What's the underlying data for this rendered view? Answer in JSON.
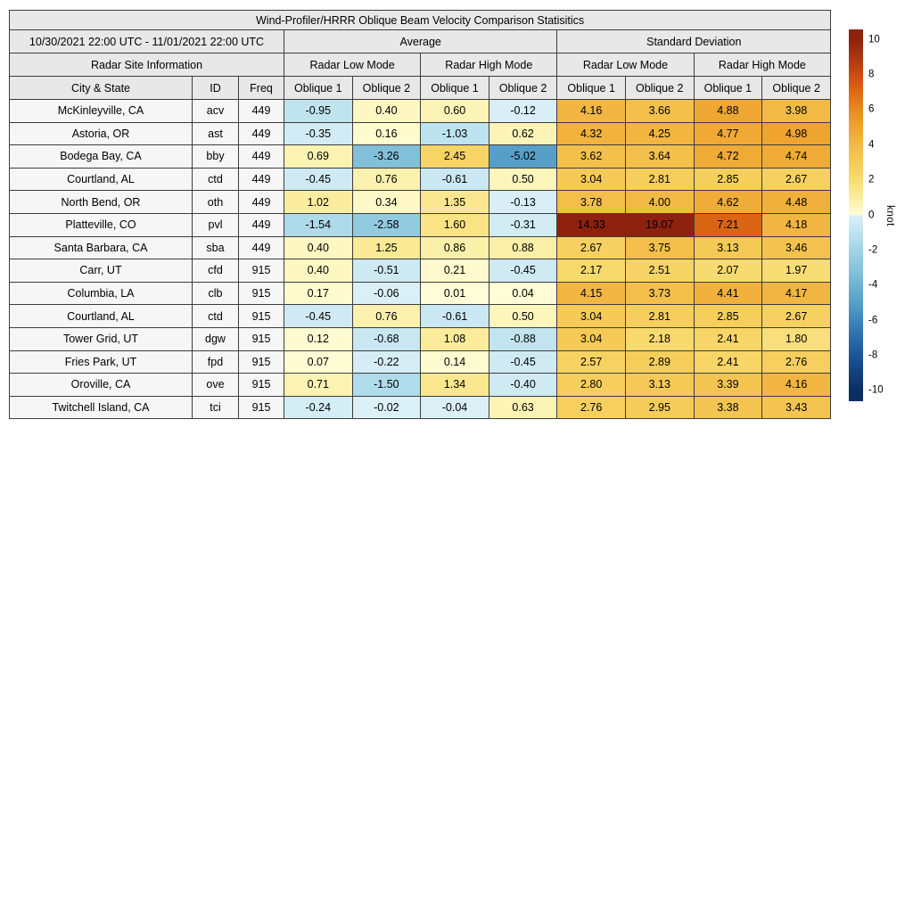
{
  "title": "Wind-Profiler/HRRR Oblique Beam Velocity Comparison Statisitics",
  "header": {
    "date_range": "10/30/2021 22:00 UTC - 11/01/2021 22:00 UTC",
    "average_label": "Average",
    "std_label": "Standard Deviation",
    "site_info_label": "Radar Site Information",
    "low_mode_label": "Radar Low Mode",
    "high_mode_label": "Radar High Mode",
    "col_city": "City & State",
    "col_id": "ID",
    "col_freq": "Freq",
    "col_oblique1": "Oblique 1",
    "col_oblique2": "Oblique 2"
  },
  "chart_data": {
    "type": "table",
    "title": "Wind-Profiler/HRRR Oblique Beam Velocity Comparison Statisitics",
    "time_range": "10/30/2021 22:00 UTC - 11/01/2021 22:00 UTC",
    "column_groups": [
      "Average / Radar Low Mode",
      "Average / Radar High Mode",
      "Standard Deviation / Radar Low Mode",
      "Standard Deviation / Radar High Mode"
    ],
    "value_columns": [
      "Avg Low Oblique 1",
      "Avg Low Oblique 2",
      "Avg High Oblique 1",
      "Avg High Oblique 2",
      "Std Low Oblique 1",
      "Std Low Oblique 2",
      "Std High Oblique 1",
      "Std High Oblique 2"
    ],
    "rows": [
      {
        "city": "McKinleyville, CA",
        "id": "acv",
        "freq": "449",
        "values": [
          "-0.95",
          "0.40",
          "0.60",
          "-0.12",
          "4.16",
          "3.66",
          "4.88",
          "3.98"
        ]
      },
      {
        "city": "Astoria, OR",
        "id": "ast",
        "freq": "449",
        "values": [
          "-0.35",
          "0.16",
          "-1.03",
          "0.62",
          "4.32",
          "4.25",
          "4.77",
          "4.98"
        ]
      },
      {
        "city": "Bodega Bay, CA",
        "id": "bby",
        "freq": "449",
        "values": [
          "0.69",
          "-3.26",
          "2.45",
          "-5.02",
          "3.62",
          "3.64",
          "4.72",
          "4.74"
        ]
      },
      {
        "city": "Courtland, AL",
        "id": "ctd",
        "freq": "449",
        "values": [
          "-0.45",
          "0.76",
          "-0.61",
          "0.50",
          "3.04",
          "2.81",
          "2.85",
          "2.67"
        ]
      },
      {
        "city": "North Bend, OR",
        "id": "oth",
        "freq": "449",
        "values": [
          "1.02",
          "0.34",
          "1.35",
          "-0.13",
          "3.78",
          "4.00",
          "4.62",
          "4.48"
        ]
      },
      {
        "city": "Platteville, CO",
        "id": "pvl",
        "freq": "449",
        "values": [
          "-1.54",
          "-2.58",
          "1.60",
          "-0.31",
          "14.33",
          "19.07",
          "7.21",
          "4.18"
        ]
      },
      {
        "city": "Santa Barbara, CA",
        "id": "sba",
        "freq": "449",
        "values": [
          "0.40",
          "1.25",
          "0.86",
          "0.88",
          "2.67",
          "3.75",
          "3.13",
          "3.46"
        ]
      },
      {
        "city": "Carr, UT",
        "id": "cfd",
        "freq": "915",
        "values": [
          "0.40",
          "-0.51",
          "0.21",
          "-0.45",
          "2.17",
          "2.51",
          "2.07",
          "1.97"
        ]
      },
      {
        "city": "Columbia, LA",
        "id": "clb",
        "freq": "915",
        "values": [
          "0.17",
          "-0.06",
          "0.01",
          "0.04",
          "4.15",
          "3.73",
          "4.41",
          "4.17"
        ]
      },
      {
        "city": "Courtland, AL",
        "id": "ctd",
        "freq": "915",
        "values": [
          "-0.45",
          "0.76",
          "-0.61",
          "0.50",
          "3.04",
          "2.81",
          "2.85",
          "2.67"
        ]
      },
      {
        "city": "Tower Grid, UT",
        "id": "dgw",
        "freq": "915",
        "values": [
          "0.12",
          "-0.68",
          "1.08",
          "-0.88",
          "3.04",
          "2.18",
          "2.41",
          "1.80"
        ]
      },
      {
        "city": "Fries Park, UT",
        "id": "fpd",
        "freq": "915",
        "values": [
          "0.07",
          "-0.22",
          "0.14",
          "-0.45",
          "2.57",
          "2.89",
          "2.41",
          "2.76"
        ]
      },
      {
        "city": "Oroville, CA",
        "id": "ove",
        "freq": "915",
        "values": [
          "0.71",
          "-1.50",
          "1.34",
          "-0.40",
          "2.80",
          "3.13",
          "3.39",
          "4.16"
        ]
      },
      {
        "city": "Twitchell Island, CA",
        "id": "tci",
        "freq": "915",
        "values": [
          "-0.24",
          "-0.02",
          "-0.04",
          "0.63",
          "2.76",
          "2.95",
          "3.38",
          "3.43"
        ]
      }
    ],
    "colorbar": {
      "unit": "knot",
      "min": -10,
      "max": 10,
      "ticks": [
        "10",
        "8",
        "6",
        "4",
        "2",
        "0",
        "-2",
        "-4",
        "-6",
        "-8",
        "-10"
      ]
    }
  },
  "colors": {
    "header_bg": "#e8e8e8",
    "site_bg": "#f6f6f6",
    "grid_line": "#3c3c3c",
    "pos_ramp": [
      [
        0,
        "#fffdd8"
      ],
      [
        0.05,
        "#fcf6bd"
      ],
      [
        0.1,
        "#fbeda0"
      ],
      [
        0.2,
        "#f8dc72"
      ],
      [
        0.3,
        "#f5cb58"
      ],
      [
        0.4,
        "#f2ba45"
      ],
      [
        0.5,
        "#efa430"
      ],
      [
        0.6,
        "#e88c21"
      ],
      [
        0.7,
        "#dd6a15"
      ],
      [
        0.8,
        "#c94d12"
      ],
      [
        0.9,
        "#ab3710"
      ],
      [
        1,
        "#8f220e"
      ]
    ],
    "neg_ramp": [
      [
        0,
        "#ddf0f7"
      ],
      [
        0.05,
        "#cde9f2"
      ],
      [
        0.1,
        "#bee3ee"
      ],
      [
        0.2,
        "#a0d3e5"
      ],
      [
        0.3,
        "#88c4dc"
      ],
      [
        0.4,
        "#6fb2d2"
      ],
      [
        0.5,
        "#56a0c8"
      ],
      [
        0.6,
        "#3e86bb"
      ],
      [
        0.7,
        "#2b6da9"
      ],
      [
        0.8,
        "#1c5499"
      ],
      [
        0.9,
        "#12407d"
      ],
      [
        1,
        "#0b2e63"
      ]
    ]
  }
}
